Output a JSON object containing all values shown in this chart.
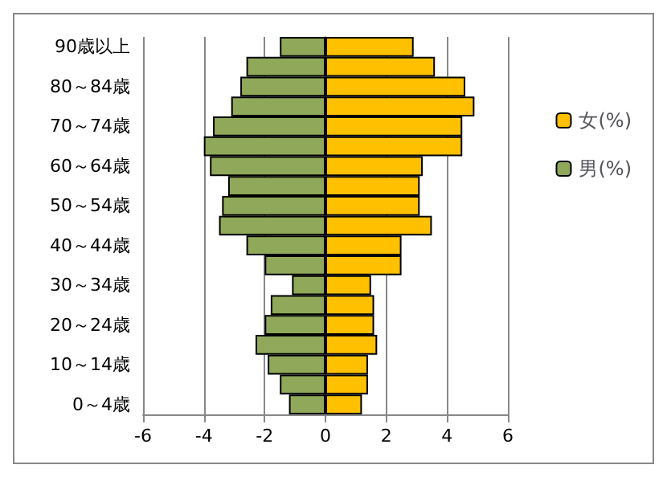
{
  "chart_data": {
    "type": "bar",
    "orientation": "horizontal",
    "categories": [
      "90歳以上",
      null,
      "80～84歳",
      null,
      "70～74歳",
      null,
      "60～64歳",
      null,
      "50～54歳",
      null,
      "40～44歳",
      null,
      "30～34歳",
      null,
      "20～24歳",
      null,
      "10～14歳",
      null,
      "0～4歳"
    ],
    "series": [
      {
        "name": "女(%)",
        "color": "#ffc000",
        "values": [
          2.9,
          3.6,
          4.6,
          4.9,
          4.5,
          4.5,
          3.2,
          3.1,
          3.1,
          3.5,
          2.5,
          2.5,
          1.5,
          1.6,
          1.6,
          1.7,
          1.4,
          1.4,
          1.2
        ]
      },
      {
        "name": "男(%)",
        "color": "#8fa85a",
        "values": [
          -1.5,
          -2.6,
          -2.8,
          -3.1,
          -3.7,
          -4.0,
          -3.8,
          -3.2,
          -3.4,
          -3.5,
          -2.6,
          -2.0,
          -1.1,
          -1.8,
          -2.0,
          -2.3,
          -1.9,
          -1.5,
          -1.2
        ]
      }
    ],
    "stacked": true,
    "xlim": [
      -6,
      6
    ],
    "xticks": [
      -6,
      -4,
      -2,
      0,
      2,
      4,
      6
    ],
    "grid": "x",
    "legend": "right"
  }
}
